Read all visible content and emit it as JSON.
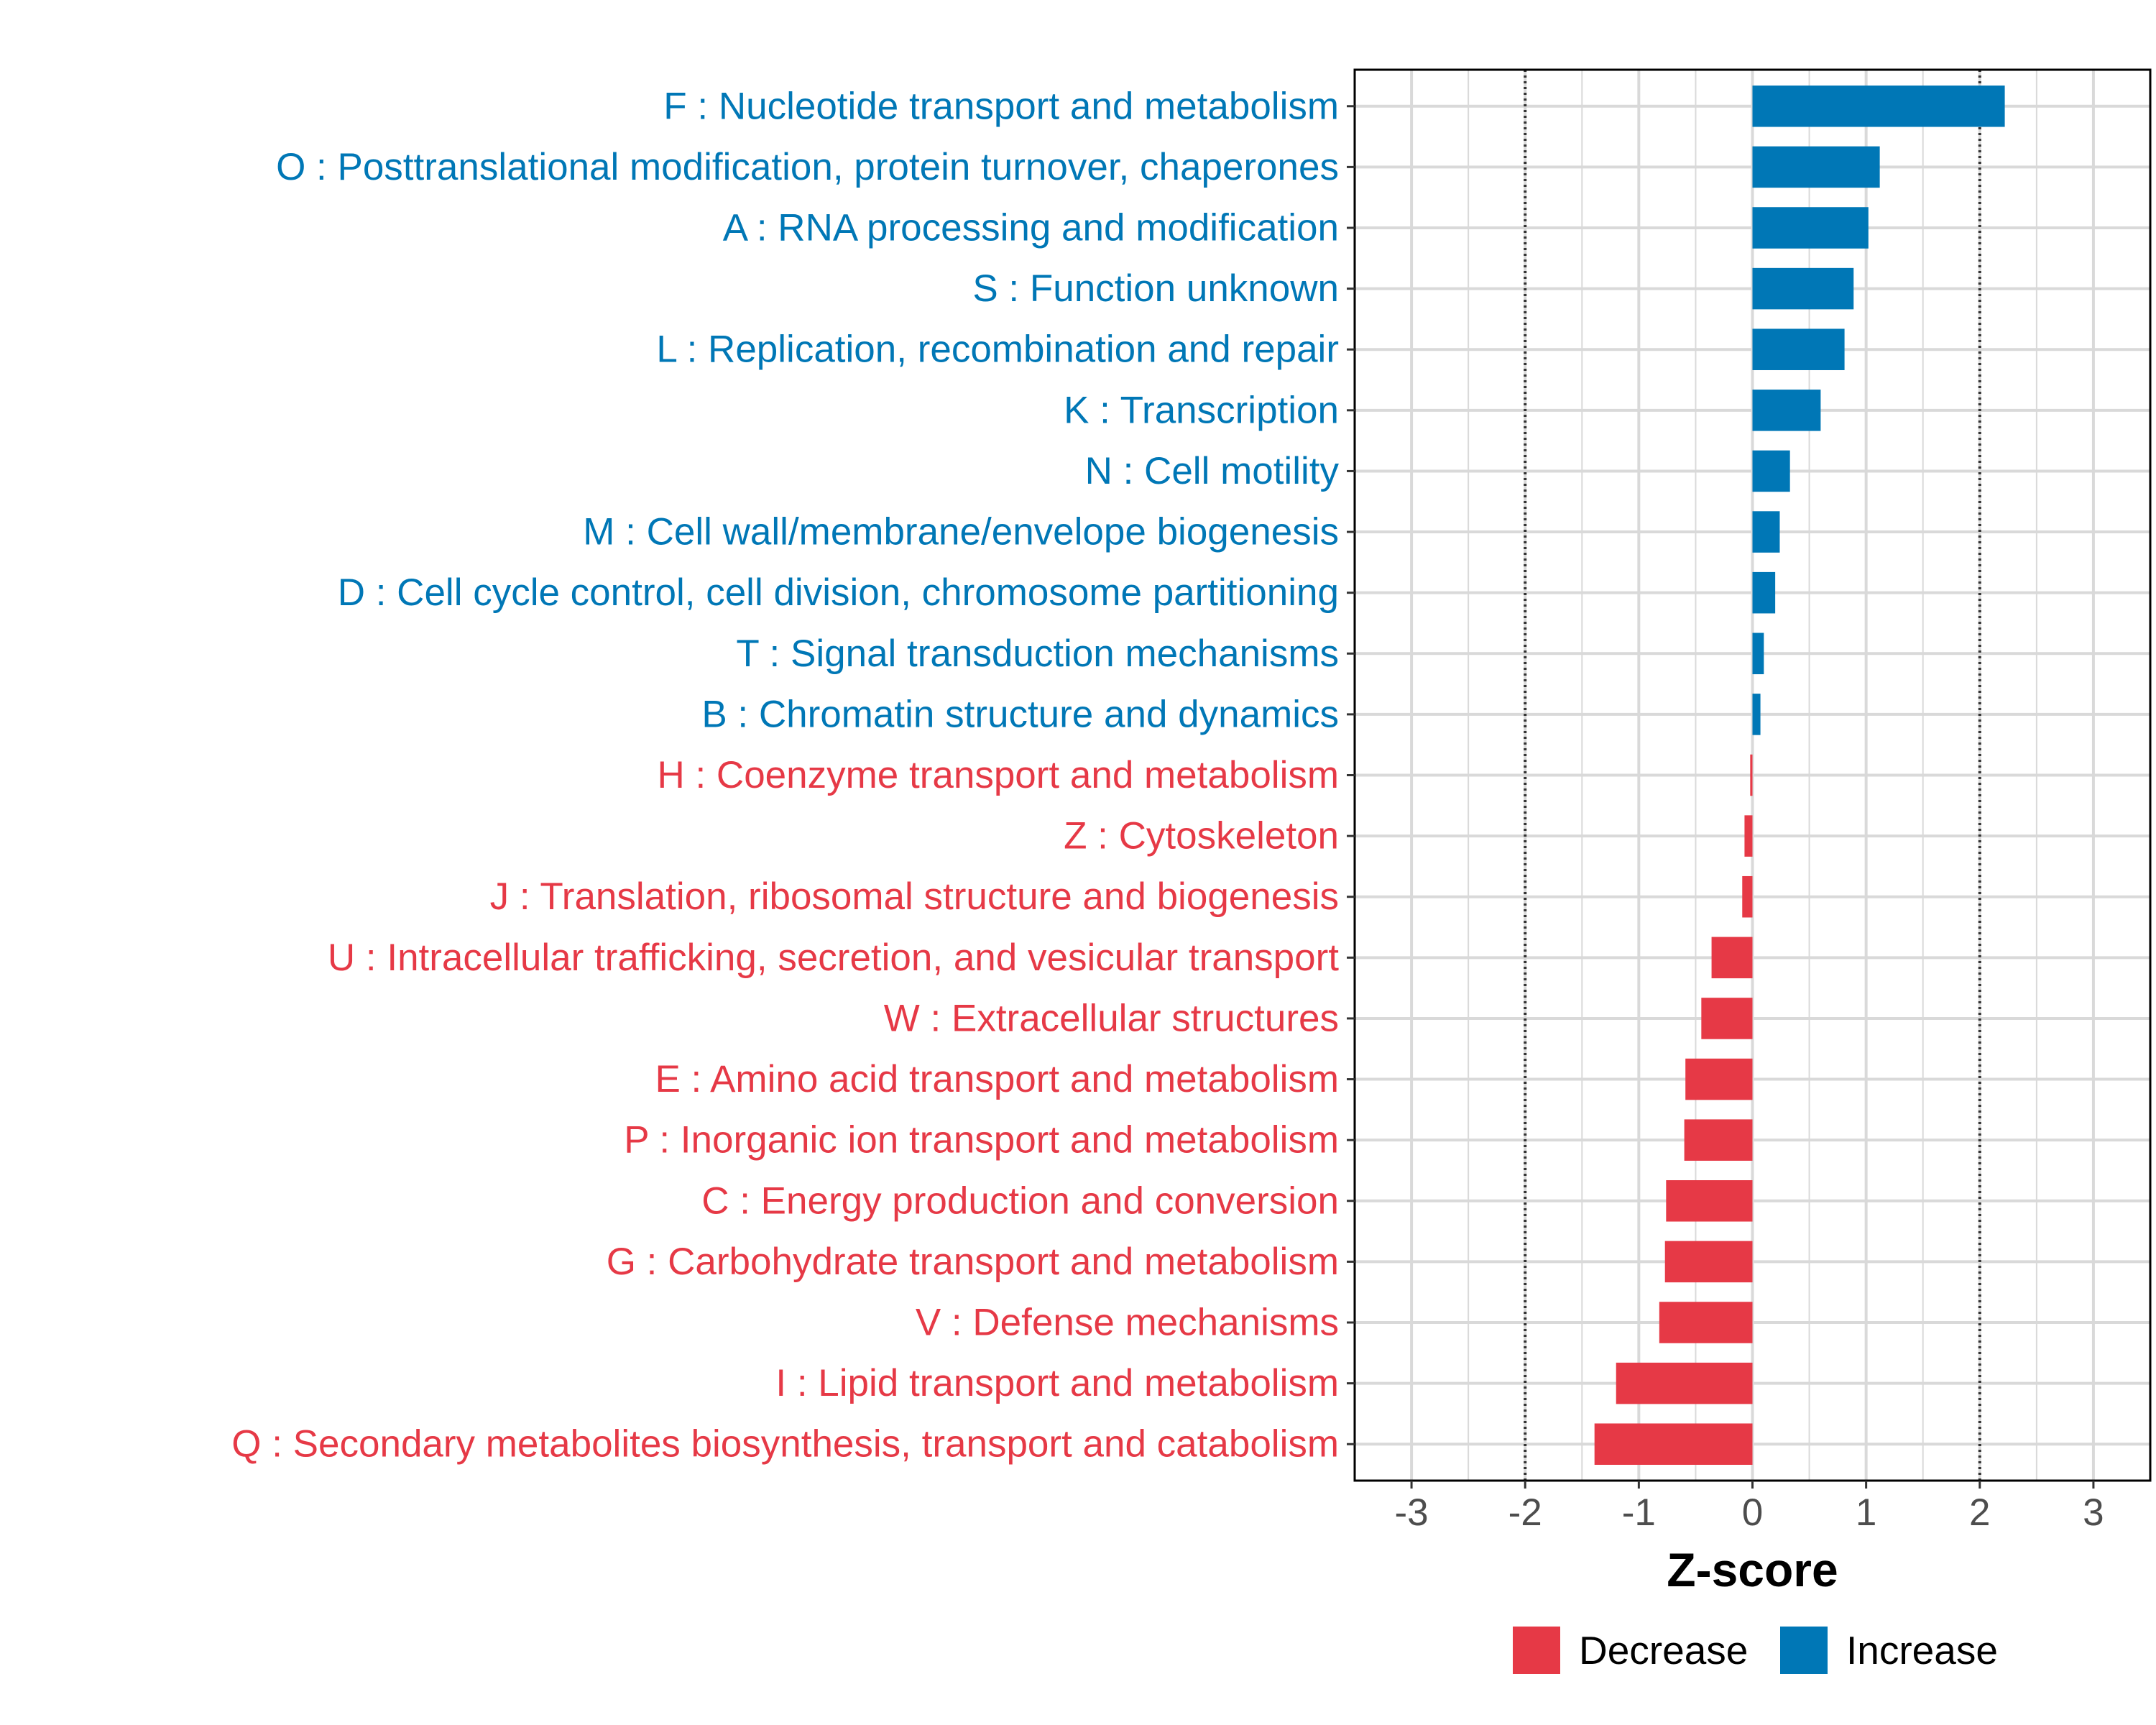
{
  "chart_data": {
    "type": "bar",
    "orientation": "horizontal",
    "xlabel": "Z-score",
    "ylabel": "",
    "xlim": [
      -3.5,
      3.5
    ],
    "xticks": [
      "-3",
      "-2",
      "-1",
      "0",
      "1",
      "2",
      "3"
    ],
    "xtick_values": [
      -3,
      -2,
      -1,
      0,
      1,
      2,
      3
    ],
    "reference_lines": [
      -2,
      2
    ],
    "grid": true,
    "legend_position": "bottom",
    "colors": {
      "Increase": "#0077b6",
      "Decrease": "#e63946"
    },
    "legend": [
      {
        "name": "Decrease",
        "color": "#e63946"
      },
      {
        "name": "Increase",
        "color": "#0077b6"
      }
    ],
    "categories": [
      {
        "label": "F : Nucleotide transport and metabolism",
        "value": 2.22,
        "group": "Increase"
      },
      {
        "label": "O : Posttranslational modification, protein turnover, chaperones",
        "value": 1.12,
        "group": "Increase"
      },
      {
        "label": "A : RNA processing and modification",
        "value": 1.02,
        "group": "Increase"
      },
      {
        "label": "S : Function unknown",
        "value": 0.89,
        "group": "Increase"
      },
      {
        "label": "L : Replication, recombination and repair",
        "value": 0.81,
        "group": "Increase"
      },
      {
        "label": "K : Transcription",
        "value": 0.6,
        "group": "Increase"
      },
      {
        "label": "N : Cell motility",
        "value": 0.33,
        "group": "Increase"
      },
      {
        "label": "M : Cell wall/membrane/envelope biogenesis",
        "value": 0.24,
        "group": "Increase"
      },
      {
        "label": "D : Cell cycle control, cell division, chromosome partitioning",
        "value": 0.2,
        "group": "Increase"
      },
      {
        "label": "T : Signal transduction mechanisms",
        "value": 0.1,
        "group": "Increase"
      },
      {
        "label": "B : Chromatin structure and dynamics",
        "value": 0.07,
        "group": "Increase"
      },
      {
        "label": "H : Coenzyme transport and metabolism",
        "value": -0.02,
        "group": "Decrease"
      },
      {
        "label": "Z : Cytoskeleton",
        "value": -0.07,
        "group": "Decrease"
      },
      {
        "label": "J : Translation, ribosomal structure and biogenesis",
        "value": -0.09,
        "group": "Decrease"
      },
      {
        "label": "U : Intracellular trafficking, secretion, and vesicular transport",
        "value": -0.36,
        "group": "Decrease"
      },
      {
        "label": "W : Extracellular structures",
        "value": -0.45,
        "group": "Decrease"
      },
      {
        "label": "E : Amino acid transport and metabolism",
        "value": -0.59,
        "group": "Decrease"
      },
      {
        "label": "P : Inorganic ion transport and metabolism",
        "value": -0.6,
        "group": "Decrease"
      },
      {
        "label": "C : Energy production and conversion",
        "value": -0.76,
        "group": "Decrease"
      },
      {
        "label": "G : Carbohydrate transport and metabolism",
        "value": -0.77,
        "group": "Decrease"
      },
      {
        "label": "V : Defense mechanisms",
        "value": -0.82,
        "group": "Decrease"
      },
      {
        "label": "I : Lipid transport and metabolism",
        "value": -1.2,
        "group": "Decrease"
      },
      {
        "label": "Q : Secondary metabolites biosynthesis, transport and catabolism",
        "value": -1.39,
        "group": "Decrease"
      }
    ]
  }
}
